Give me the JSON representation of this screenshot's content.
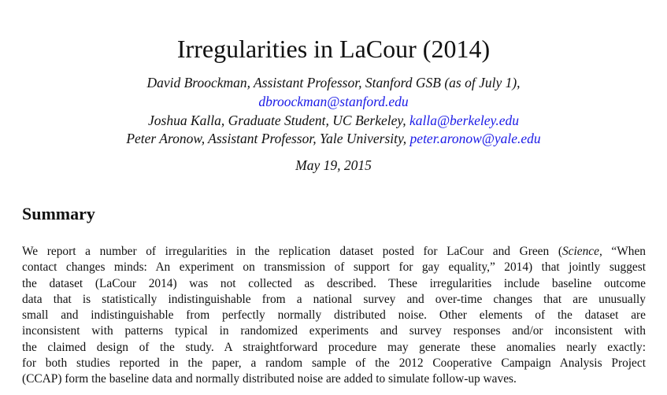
{
  "paper": {
    "title": "Irregularities in LaCour (2014)",
    "authors": {
      "line1": "David Broockman, Assistant Professor, Stanford GSB (as of July 1),",
      "line2_email": "dbroockman@stanford.edu",
      "line3_text": "Joshua Kalla, Graduate Student, UC Berkeley, ",
      "line3_email": "kalla@berkeley.edu",
      "line4_text": "Peter Aronow, Assistant Professor, Yale University, ",
      "line4_email": "peter.aronow@yale.edu"
    },
    "date": "May 19, 2015",
    "section_heading": "Summary",
    "abstract_lines": [
      {
        "a": "We report a number of irregularities in the replication dataset posted for LaCour and Green (",
        "i": "Science",
        "b": ", “When"
      },
      {
        "a": "contact changes minds: An experiment on transmission of support for gay equality,” 2014) that jointly suggest"
      },
      {
        "a": "the dataset (LaCour 2014) was not collected as described.  These irregularities include baseline outcome"
      },
      {
        "a": "data that is statistically indistinguishable from a national survey and over-time changes that are unusually"
      },
      {
        "a": "small and indistinguishable from perfectly normally distributed noise.  Other elements of the dataset are"
      },
      {
        "a": "inconsistent with patterns typical in randomized experiments and survey responses and/or inconsistent with"
      },
      {
        "a": "the claimed design of the study.  A straightforward procedure may generate these anomalies nearly exactly:"
      },
      {
        "a": "for both studies reported in the paper, a random sample of the 2012 Cooperative Campaign Analysis Project"
      },
      {
        "a": "(CCAP) form the baseline data and normally distributed noise are added to simulate follow-up waves."
      }
    ]
  },
  "colors": {
    "link": "#1a1ae6",
    "text": "#111111",
    "background": "#ffffff"
  }
}
